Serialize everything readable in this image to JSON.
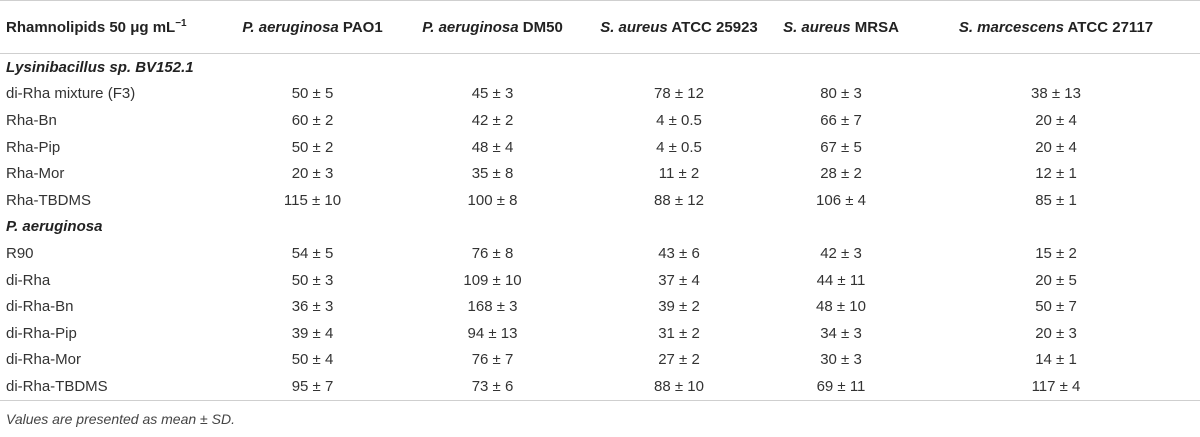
{
  "table": {
    "headers": [
      {
        "plain": "Rhamnolipids 50 μg mL",
        "sup": "−1"
      },
      {
        "italic": "P. aeruginosa",
        "rest": " PAO1"
      },
      {
        "italic": "P. aeruginosa",
        "rest": " DM50"
      },
      {
        "italic": "S. aureus",
        "rest": " ATCC 25923"
      },
      {
        "italic": "S. aureus",
        "rest": " MRSA"
      },
      {
        "italic": "S. marcescens",
        "rest": " ATCC 27117"
      }
    ],
    "groups": [
      {
        "title_italic": "Lysinibacillus",
        "title_rest": " sp. BV152.1",
        "rows": [
          {
            "name": "di-Rha mixture (F3)",
            "values": [
              "50 ± 5",
              "45 ± 3",
              "78 ± 12",
              "80 ± 3",
              "38 ± 13"
            ]
          },
          {
            "name": "Rha-Bn",
            "values": [
              "60 ± 2",
              "42 ± 2",
              "4 ± 0.5",
              "66 ± 7",
              "20 ± 4"
            ]
          },
          {
            "name": "Rha-Pip",
            "values": [
              "50 ± 2",
              "48 ± 4",
              "4 ± 0.5",
              "67 ± 5",
              "20 ± 4"
            ]
          },
          {
            "name": "Rha-Mor",
            "values": [
              "20 ± 3",
              "35 ± 8",
              "11 ± 2",
              "28 ± 2",
              "12 ± 1"
            ]
          },
          {
            "name": "Rha-TBDMS",
            "values": [
              "115 ± 10",
              "100 ± 8",
              "88 ± 12",
              "106 ± 4",
              "85 ± 1"
            ]
          }
        ]
      },
      {
        "title_italic": "P. aeruginosa",
        "title_rest": "",
        "rows": [
          {
            "name": "R90",
            "values": [
              "54 ± 5",
              "76 ± 8",
              "43 ± 6",
              "42 ± 3",
              "15 ± 2"
            ]
          },
          {
            "name": "di-Rha",
            "values": [
              "50 ± 3",
              "109 ± 10",
              "37 ± 4",
              "44 ± 11",
              "20 ± 5"
            ]
          },
          {
            "name": "di-Rha-Bn",
            "values": [
              "36 ± 3",
              "168 ± 3",
              "39 ± 2",
              "48 ± 10",
              "50 ± 7"
            ]
          },
          {
            "name": "di-Rha-Pip",
            "values": [
              "39 ± 4",
              "94 ± 13",
              "31 ± 2",
              "34 ± 3",
              "20 ± 3"
            ]
          },
          {
            "name": "di-Rha-Mor",
            "values": [
              "50 ± 4",
              "76 ± 7",
              "27 ± 2",
              "30 ± 3",
              "14 ± 1"
            ]
          },
          {
            "name": "di-Rha-TBDMS",
            "values": [
              "95 ± 7",
              "73 ± 6",
              "88 ± 10",
              "69 ± 11",
              "117 ± 4"
            ]
          }
        ]
      }
    ],
    "footnote": "Values are presented as mean ± SD."
  }
}
